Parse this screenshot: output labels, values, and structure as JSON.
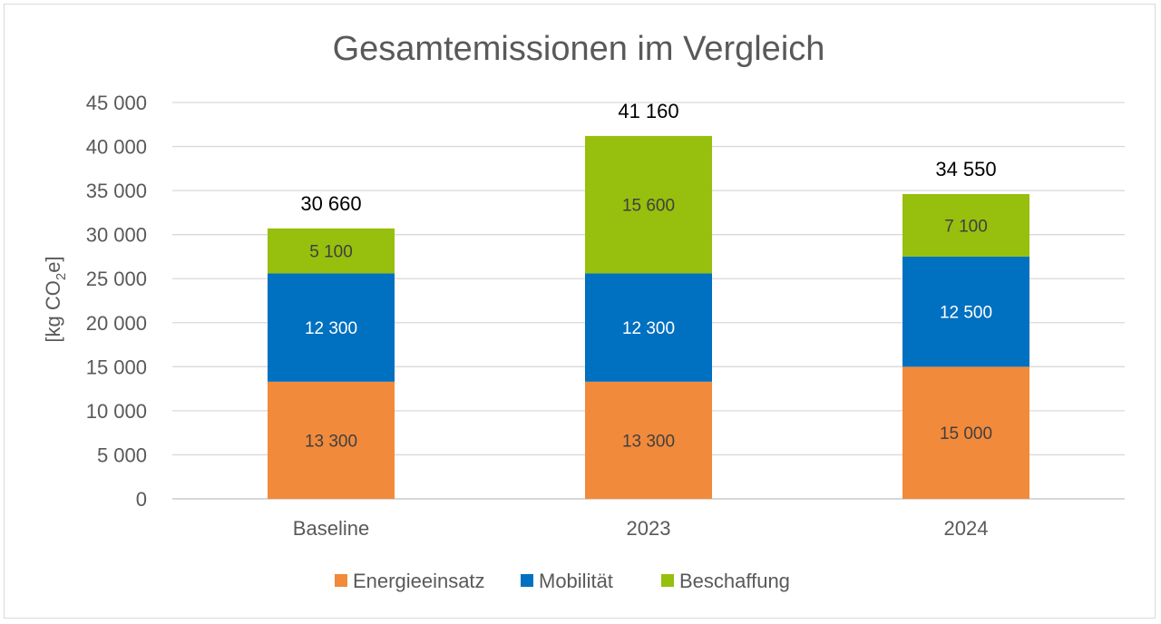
{
  "chart_data": {
    "type": "bar",
    "stacked": true,
    "title": "Gesamtemissionen im Vergleich",
    "xlabel": "",
    "ylabel": "[kg CO2e]",
    "ylabel_parts": {
      "main": "[kg CO",
      "sub": "2",
      "tail": "e]"
    },
    "ylim": [
      0,
      45000
    ],
    "yticks": [
      0,
      5000,
      10000,
      15000,
      20000,
      25000,
      30000,
      35000,
      40000,
      45000
    ],
    "ytick_labels": [
      "0",
      "5 000",
      "10 000",
      "15 000",
      "20 000",
      "25 000",
      "30 000",
      "35 000",
      "40 000",
      "45 000"
    ],
    "grid": true,
    "legend_position": "bottom",
    "categories": [
      "Baseline",
      "2023",
      "2024"
    ],
    "series": [
      {
        "name": "Energieeinsatz",
        "color": "#F28A3B",
        "label_color": "#404040",
        "values": [
          13300,
          13300,
          15000
        ],
        "labels": [
          "13 300",
          "13 300",
          "15 000"
        ]
      },
      {
        "name": "Mobilität",
        "color": "#0070C0",
        "label_color": "#FFFFFF",
        "values": [
          12300,
          12300,
          12500
        ],
        "labels": [
          "12 300",
          "12 300",
          "12 500"
        ]
      },
      {
        "name": "Beschaffung",
        "color": "#97BF0D",
        "label_color": "#404040",
        "values": [
          5100,
          15600,
          7100
        ],
        "labels": [
          "5 100",
          "15 600",
          "7 100"
        ]
      }
    ],
    "totals": [
      30660,
      41160,
      34550
    ],
    "total_labels": [
      "30 660",
      "41 160",
      "34 550"
    ]
  }
}
